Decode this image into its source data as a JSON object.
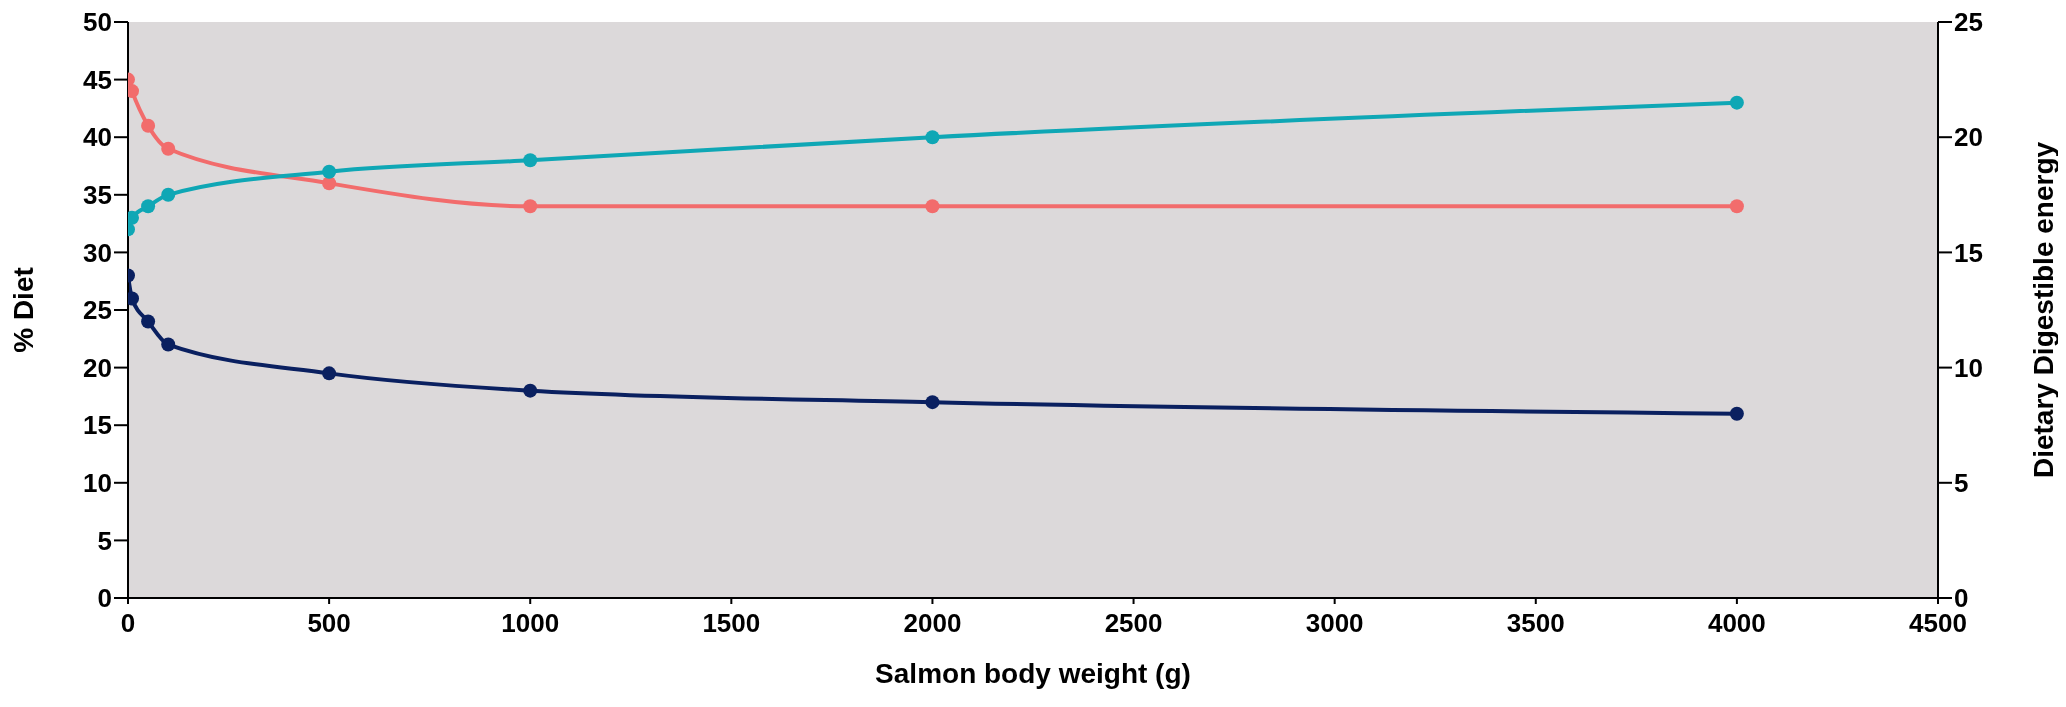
{
  "chart_data": {
    "type": "line",
    "xlabel": "Salmon body weight (g)",
    "ylabel": "% Diet",
    "y2label": "Dietary Digestible energy",
    "x": [
      0,
      10,
      50,
      100,
      500,
      1000,
      2000,
      4000
    ],
    "series": [
      {
        "color": "#f26c6c",
        "values": [
          45,
          44,
          41,
          39,
          36,
          34,
          34,
          34
        ]
      },
      {
        "color": "#0fa7b5",
        "values": [
          32,
          33,
          34,
          35,
          37,
          38,
          40,
          43
        ]
      },
      {
        "color": "#0a2060",
        "values": [
          28,
          26,
          24,
          22,
          19.5,
          18,
          17,
          16
        ]
      }
    ],
    "marker": "circle",
    "legend": false,
    "xlim": [
      0,
      4500
    ],
    "xticks": [
      0,
      500,
      1000,
      1500,
      2000,
      2500,
      3000,
      3500,
      4000,
      4500
    ],
    "ylim": [
      0,
      50
    ],
    "yticks": [
      0,
      5,
      10,
      15,
      20,
      25,
      30,
      35,
      40,
      45,
      50
    ],
    "y2lim": [
      0,
      25
    ],
    "y2ticks": [
      0,
      5,
      10,
      15,
      20,
      25
    ]
  }
}
